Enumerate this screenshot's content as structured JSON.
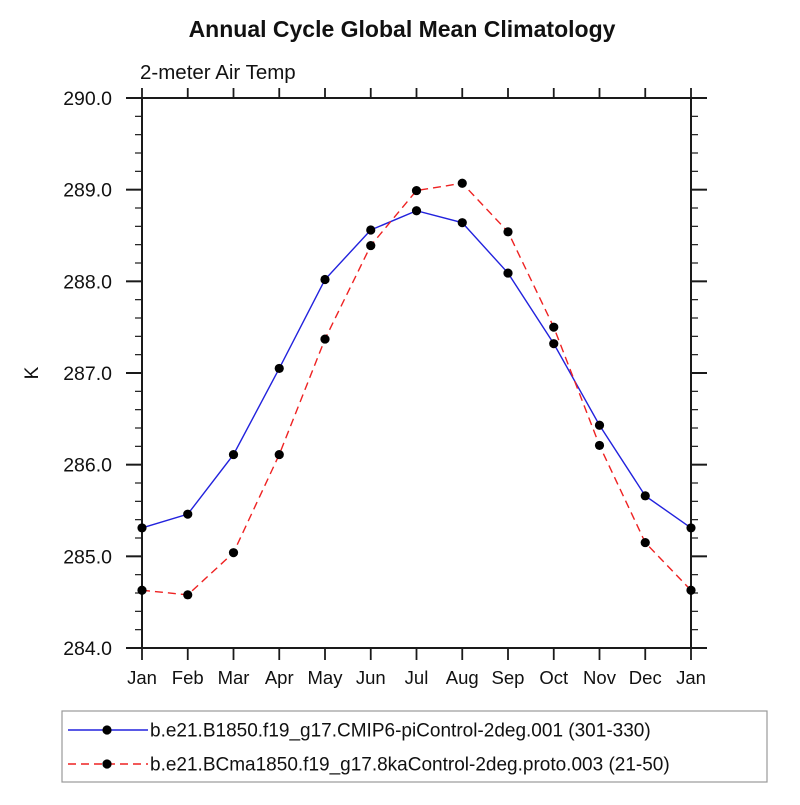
{
  "chart_data": {
    "type": "line",
    "title": "Annual Cycle Global Mean Climatology",
    "subtitle": "2-meter Air Temp",
    "ylabel": "K",
    "xlabel": "",
    "grid": false,
    "legend_position": "bottom",
    "categories": [
      "Jan",
      "Feb",
      "Mar",
      "Apr",
      "May",
      "Jun",
      "Jul",
      "Aug",
      "Sep",
      "Oct",
      "Nov",
      "Dec",
      "Jan"
    ],
    "ylim": [
      284.0,
      290.0
    ],
    "yticks": [
      290.0,
      289.0,
      288.0,
      287.0,
      286.0,
      285.0,
      284.0
    ],
    "ytick_labels": [
      "290.0",
      "289.0",
      "288.0",
      "287.0",
      "286.0",
      "285.0",
      "284.0"
    ],
    "yminor_step": 0.2,
    "ink_color": "#1a1a1a",
    "legend_border_color": "#999999",
    "series": [
      {
        "name": "b.e21.B1850.f19_g17.CMIP6-piControl-2deg.001 (301-330)",
        "color": "#2222dd",
        "style": "solid",
        "marker": "circle",
        "marker_color": "#000000",
        "values": [
          285.31,
          285.46,
          286.11,
          287.05,
          288.02,
          288.56,
          288.77,
          288.64,
          288.09,
          287.32,
          286.43,
          285.66,
          285.31
        ]
      },
      {
        "name": "b.e21.BCma1850.f19_g17.8kaControl-2deg.proto.003 (21-50)",
        "color": "#ee2222",
        "style": "dashed",
        "marker": "circle",
        "marker_color": "#000000",
        "values": [
          284.63,
          284.58,
          285.04,
          286.11,
          287.37,
          288.39,
          288.99,
          289.07,
          288.54,
          287.5,
          286.21,
          285.15,
          284.63
        ]
      }
    ]
  }
}
